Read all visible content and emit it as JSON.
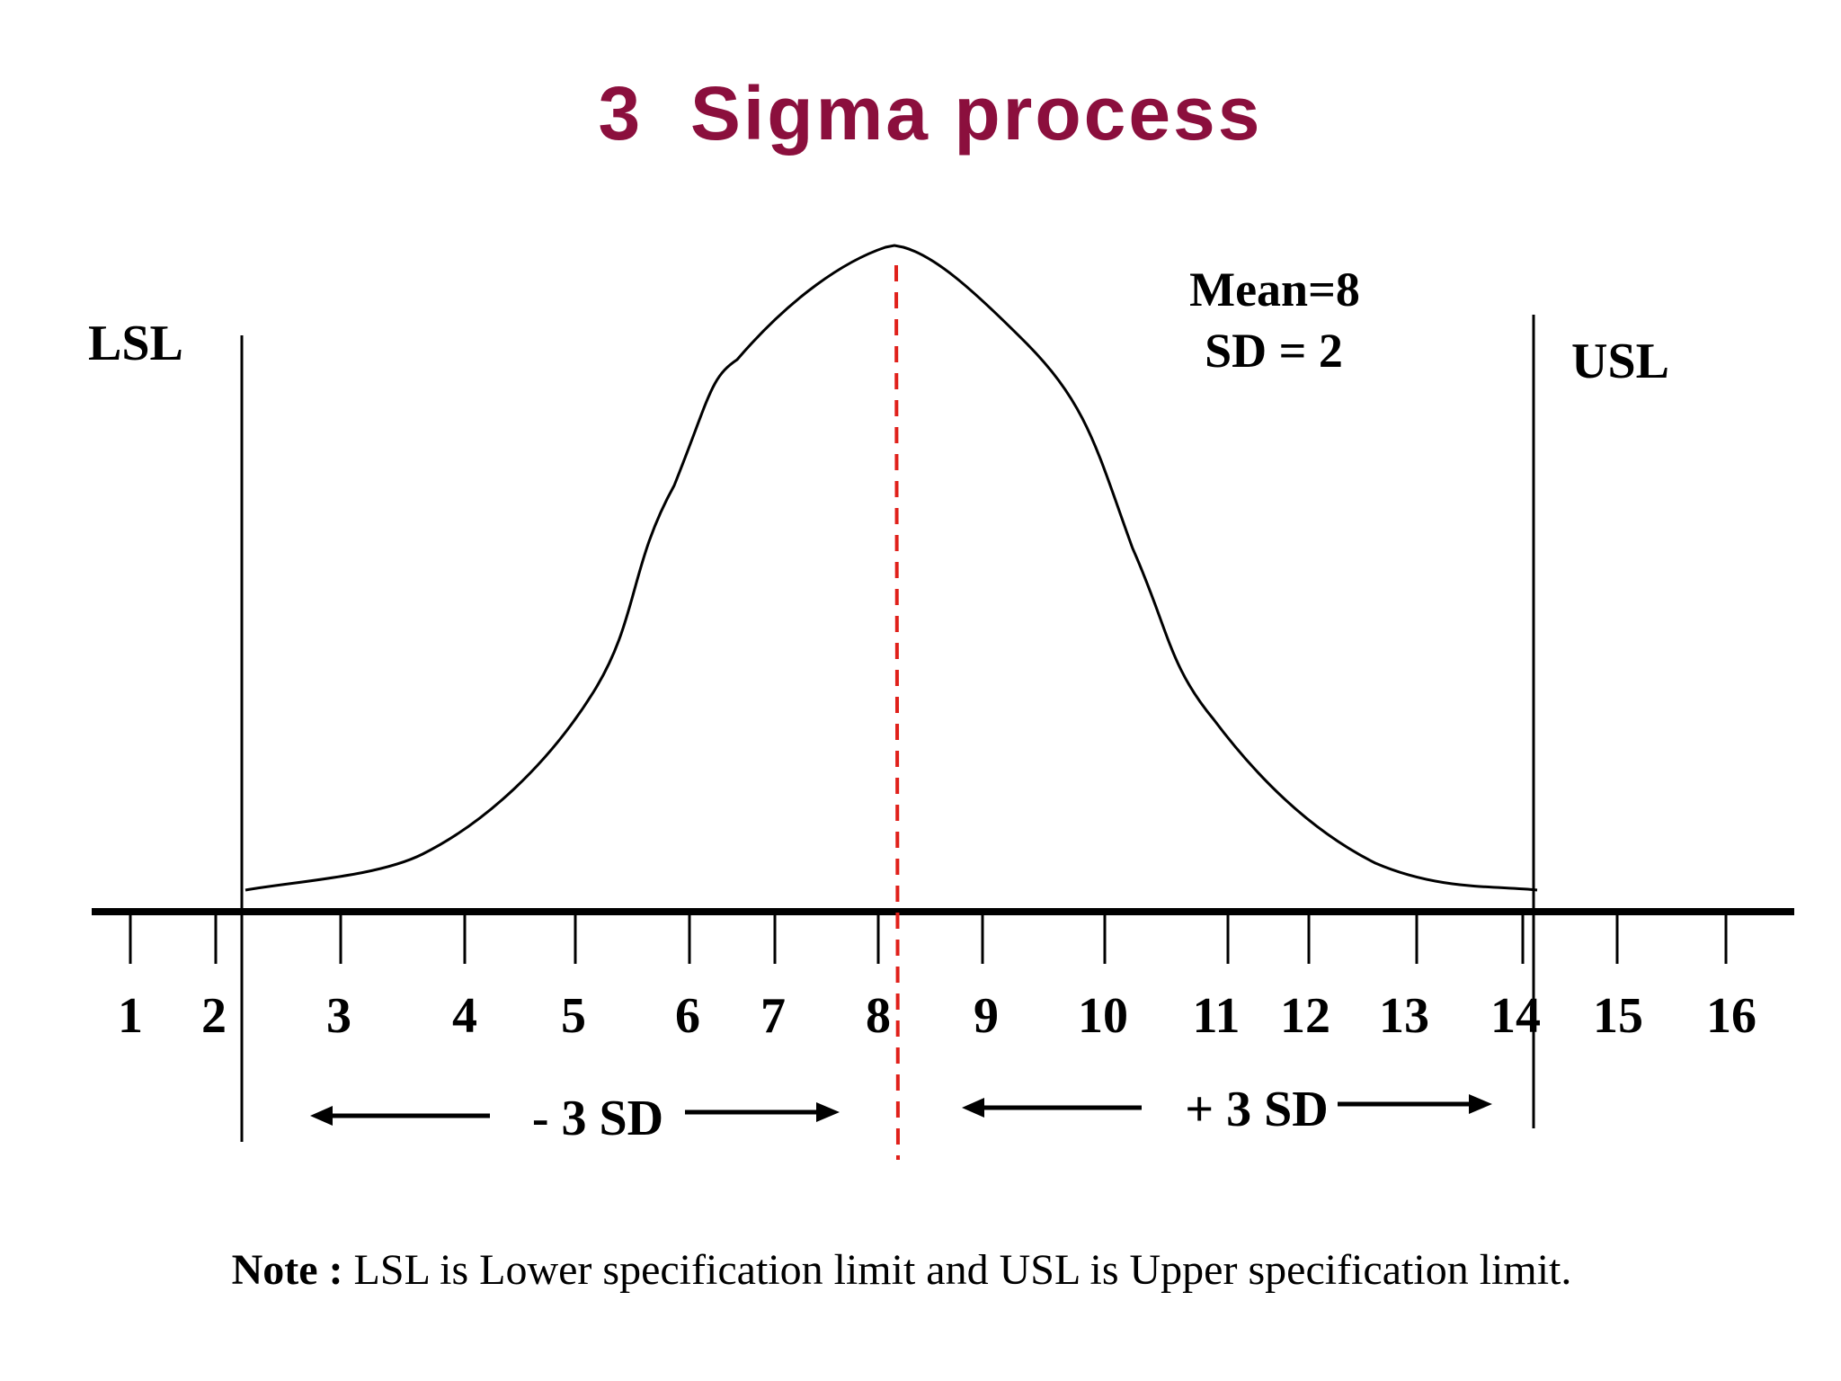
{
  "title": "3  Sigma process",
  "labels": {
    "lsl": "LSL",
    "usl": "USL",
    "mean": "Mean=8",
    "sd": "SD = 2",
    "minus_sd": "- 3 SD",
    "plus_sd": "+ 3 SD"
  },
  "axis": {
    "ticks": [
      "1",
      "2",
      "3",
      "4",
      "5",
      "6",
      "7",
      "8",
      "9",
      "10",
      "11",
      "12",
      "13",
      "14",
      "15",
      "16"
    ]
  },
  "note": {
    "prefix": "Note :",
    "text": " LSL is Lower specification limit and USL is Upper specification limit."
  },
  "colors": {
    "title": "#8b0f3d",
    "mean_line": "#e0201a",
    "line": "#000000"
  }
}
